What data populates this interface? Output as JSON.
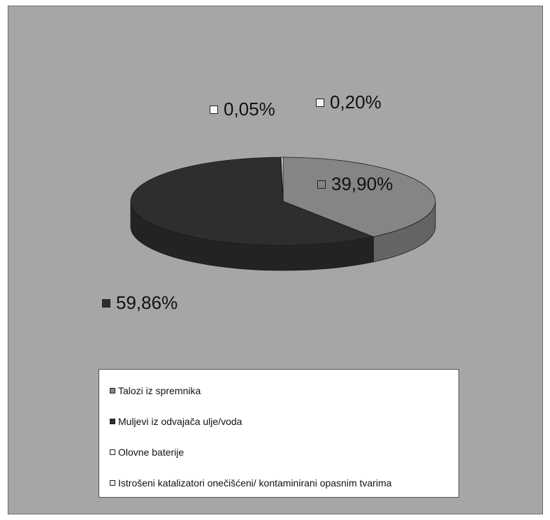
{
  "chart_data": {
    "type": "pie",
    "title": "",
    "three_d": true,
    "categories": [
      "Talozi iz spremnika",
      "Muljevi iz odvajača ulje/voda",
      "Olovne baterije",
      "Istrošeni katalizatori onečišćeni/ kontaminirani opasnim tvarima"
    ],
    "values": [
      39.9,
      59.86,
      0.05,
      0.2
    ],
    "data_labels": [
      "39,90%",
      "59,86%",
      "0,05%",
      "0,20%"
    ],
    "colors": [
      "#858585",
      "#2e2e2e",
      "#ffffff",
      "#f2f2f2"
    ],
    "legend_position": "bottom"
  }
}
